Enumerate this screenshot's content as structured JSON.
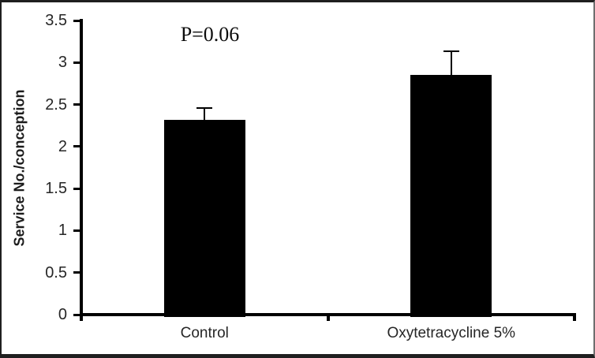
{
  "figure": {
    "background": "#ffffff",
    "border_color": "#1f1f1f"
  },
  "chart_data": {
    "type": "bar",
    "title": "",
    "annotation": "P=0.06",
    "ylabel": "Service No./conception",
    "xlabel": "",
    "categories": [
      "Control",
      "Oxytetracycline 5%"
    ],
    "values": [
      2.32,
      2.85
    ],
    "errors_plus": [
      0.14,
      0.28
    ],
    "ylim": [
      0,
      3.5
    ],
    "yticks": [
      0,
      0.5,
      1,
      1.5,
      2,
      2.5,
      3,
      3.5
    ],
    "ytick_labels": [
      "0",
      "0.5",
      "1",
      "1.5",
      "2",
      "2.5",
      "3",
      "3.5"
    ],
    "bar_color": "#000000",
    "axis_color": "#000000",
    "error_bar_color": "#000000",
    "grid": false,
    "legend": "none"
  }
}
